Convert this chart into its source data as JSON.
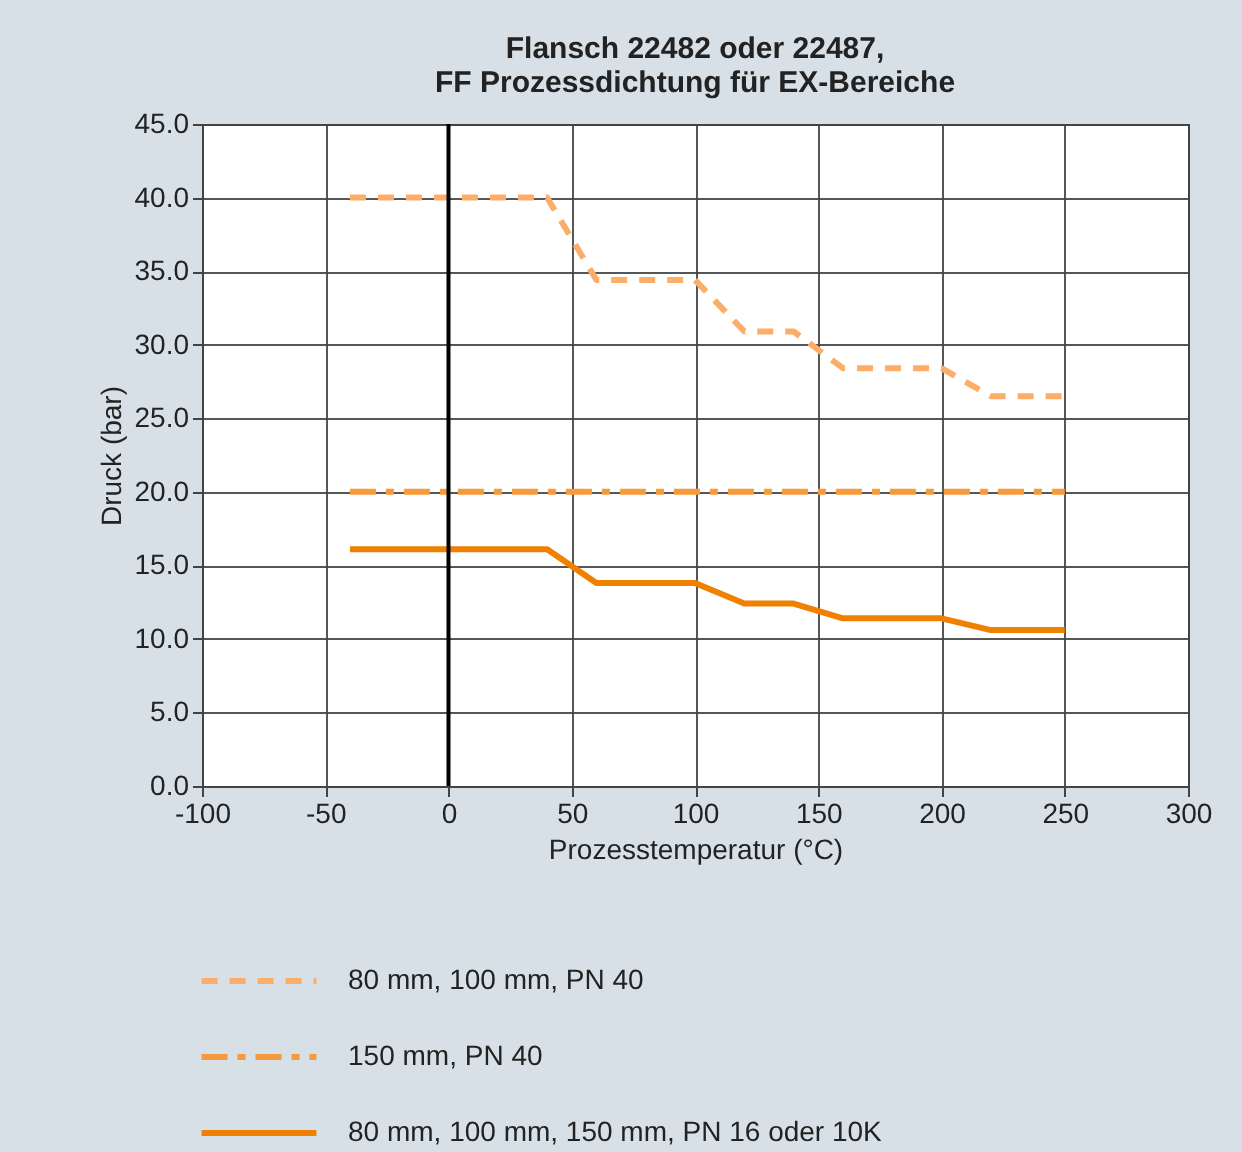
{
  "chart_data": {
    "type": "line",
    "title": "Flansch 22482 oder 22487,\nFF Prozessdichtung für EX-Bereiche",
    "xlabel": "Prozesstemperatur (°C)",
    "ylabel": "Druck (bar)",
    "xlim": [
      -100,
      300
    ],
    "xticks": [
      -100,
      -50,
      0,
      50,
      100,
      150,
      200,
      250,
      300
    ],
    "ylim": [
      0,
      45
    ],
    "yticks": [
      {
        "value": 0,
        "label": "0.0"
      },
      {
        "value": 5,
        "label": "5.0"
      },
      {
        "value": 10,
        "label": "10.0"
      },
      {
        "value": 15,
        "label": "15.0"
      },
      {
        "value": 20,
        "label": "20.0"
      },
      {
        "value": 25,
        "label": "25.0"
      },
      {
        "value": 30,
        "label": "30.0"
      },
      {
        "value": 35,
        "label": "35.0"
      },
      {
        "value": 40,
        "label": "40.0"
      },
      {
        "value": 45,
        "label": "45.0"
      }
    ],
    "grid": true,
    "legend": "bottom",
    "marker": "none",
    "ref_lines": [
      {
        "axis": "x",
        "value": 0,
        "color": "#000000"
      }
    ],
    "series": [
      {
        "name": "80 mm, 100 mm, PN 40",
        "color": "#fbae6a",
        "line_style": "dashed",
        "x": [
          -40,
          40,
          60,
          100,
          120,
          140,
          160,
          200,
          220,
          250
        ],
        "values": [
          40,
          40,
          34.4,
          34.4,
          30.9,
          30.9,
          28.4,
          28.4,
          26.5,
          26.5
        ]
      },
      {
        "name": "150 mm, PN 40",
        "color": "#f79a3e",
        "line_style": "dashdot",
        "x": [
          -40,
          250
        ],
        "values": [
          20,
          20
        ]
      },
      {
        "name": "80 mm, 100 mm, 150 mm, PN 16 oder 10K",
        "color": "#f08000",
        "line_style": "solid",
        "x": [
          -40,
          40,
          60,
          100,
          120,
          140,
          160,
          200,
          220,
          250
        ],
        "values": [
          16.1,
          16.1,
          13.8,
          13.8,
          12.4,
          12.4,
          11.4,
          11.4,
          10.6,
          10.6
        ]
      }
    ]
  }
}
